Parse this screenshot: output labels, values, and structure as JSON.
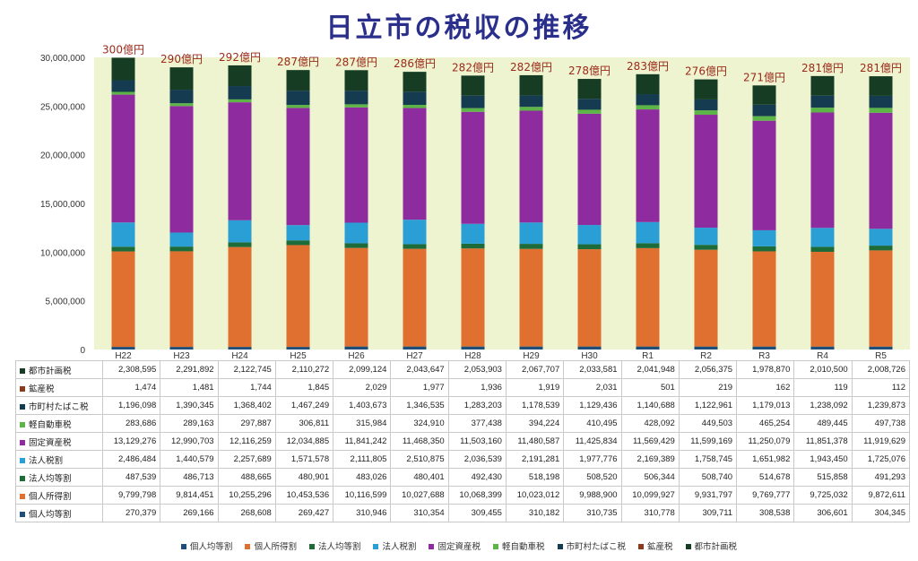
{
  "chart_data": {
    "type": "bar",
    "stacked": true,
    "title": "日立市の税収の推移",
    "categories": [
      "H22",
      "H23",
      "H24",
      "H25",
      "H26",
      "H27",
      "H28",
      "H29",
      "H30",
      "R1",
      "R2",
      "R3",
      "R4",
      "R5"
    ],
    "totals_label": [
      "300億円",
      "290億円",
      "292億円",
      "287億円",
      "287億円",
      "286億円",
      "282億円",
      "282億円",
      "278億円",
      "283億円",
      "276億円",
      "271億円",
      "281億円",
      "281億円"
    ],
    "ylim": [
      0,
      30000000
    ],
    "yticks": [
      "0",
      "5,000,000",
      "10,000,000",
      "15,000,000",
      "20,000,000",
      "25,000,000",
      "30,000,000"
    ],
    "grid": false,
    "legend_position": "bottom",
    "series": [
      {
        "name": "個人均等割",
        "color": "#1f4e79",
        "values": [
          270379,
          269166,
          268608,
          269427,
          310946,
          310354,
          309455,
          310182,
          310735,
          310778,
          309711,
          308538,
          306601,
          304345
        ],
        "labels": [
          "270,379",
          "269,166",
          "268,608",
          "269,427",
          "310,946",
          "310,354",
          "309,455",
          "310,182",
          "310,735",
          "310,778",
          "309,711",
          "308,538",
          "306,601",
          "304,345"
        ]
      },
      {
        "name": "個人所得割",
        "color": "#e07030",
        "values": [
          9799798,
          9814451,
          10255296,
          10453536,
          10116599,
          10027688,
          10068399,
          10023012,
          9988900,
          10099927,
          9931797,
          9769777,
          9725032,
          9872611
        ],
        "labels": [
          "9,799,798",
          "9,814,451",
          "10,255,296",
          "10,453,536",
          "10,116,599",
          "10,027,688",
          "10,068,399",
          "10,023,012",
          "9,988,900",
          "10,099,927",
          "9,931,797",
          "9,769,777",
          "9,725,032",
          "9,872,611"
        ]
      },
      {
        "name": "法人均等割",
        "color": "#1e6b3a",
        "values": [
          487539,
          486713,
          488665,
          480901,
          483026,
          480401,
          492430,
          518198,
          508520,
          506344,
          508740,
          514678,
          515858,
          491293
        ],
        "labels": [
          "487,539",
          "486,713",
          "488,665",
          "480,901",
          "483,026",
          "480,401",
          "492,430",
          "518,198",
          "508,520",
          "506,344",
          "508,740",
          "514,678",
          "515,858",
          "491,293"
        ]
      },
      {
        "name": "法人税割",
        "color": "#2a9fd6",
        "values": [
          2486484,
          1440579,
          2257689,
          1571578,
          2111805,
          2510875,
          2036539,
          2191281,
          1977776,
          2169389,
          1758745,
          1651982,
          1943450,
          1725076
        ],
        "labels": [
          "2,486,484",
          "1,440,579",
          "2,257,689",
          "1,571,578",
          "2,111,805",
          "2,510,875",
          "2,036,539",
          "2,191,281",
          "1,977,776",
          "2,169,389",
          "1,758,745",
          "1,651,982",
          "1,943,450",
          "1,725,076"
        ]
      },
      {
        "name": "固定資産税",
        "color": "#8e2b9e",
        "values": [
          13129276,
          12990703,
          12116259,
          12034885,
          11841242,
          11468350,
          11503160,
          11480587,
          11425834,
          11569429,
          11599169,
          11250079,
          11851378,
          11919629
        ],
        "labels": [
          "13,129,276",
          "12,990,703",
          "12,116,259",
          "12,034,885",
          "11,841,242",
          "11,468,350",
          "11,503,160",
          "11,480,587",
          "11,425,834",
          "11,569,429",
          "11,599,169",
          "11,250,079",
          "11,851,378",
          "11,919,629"
        ]
      },
      {
        "name": "軽自動車税",
        "color": "#5db547",
        "values": [
          283686,
          289163,
          297887,
          306811,
          315984,
          324910,
          377438,
          394224,
          410495,
          428092,
          449503,
          465254,
          489445,
          497738
        ],
        "labels": [
          "283,686",
          "289,163",
          "297,887",
          "306,811",
          "315,984",
          "324,910",
          "377,438",
          "394,224",
          "410,495",
          "428,092",
          "449,503",
          "465,254",
          "489,445",
          "497,738"
        ]
      },
      {
        "name": "市町村たばこ税",
        "color": "#143b4f",
        "values": [
          1196098,
          1390345,
          1368402,
          1467249,
          1403673,
          1346535,
          1283203,
          1178539,
          1129436,
          1140688,
          1122961,
          1179013,
          1238092,
          1239873
        ],
        "labels": [
          "1,196,098",
          "1,390,345",
          "1,368,402",
          "1,467,249",
          "1,403,673",
          "1,346,535",
          "1,283,203",
          "1,178,539",
          "1,129,436",
          "1,140,688",
          "1,122,961",
          "1,179,013",
          "1,238,092",
          "1,239,873"
        ]
      },
      {
        "name": "鉱産税",
        "color": "#8a3a1c",
        "values": [
          1474,
          1481,
          1744,
          1845,
          2029,
          1977,
          1936,
          1919,
          2031,
          501,
          219,
          162,
          119,
          112
        ],
        "labels": [
          "1,474",
          "1,481",
          "1,744",
          "1,845",
          "2,029",
          "1,977",
          "1,936",
          "1,919",
          "2,031",
          "501",
          "219",
          "162",
          "119",
          "112"
        ]
      },
      {
        "name": "都市計画税",
        "color": "#163d24",
        "values": [
          2308595,
          2291892,
          2122745,
          2110272,
          2099124,
          2043647,
          2053903,
          2067707,
          2033581,
          2041948,
          2056375,
          1978870,
          2010500,
          2008726
        ],
        "labels": [
          "2,308,595",
          "2,291,892",
          "2,122,745",
          "2,110,272",
          "2,099,124",
          "2,043,647",
          "2,053,903",
          "2,067,707",
          "2,033,581",
          "2,041,948",
          "2,056,375",
          "1,978,870",
          "2,010,500",
          "2,008,726"
        ]
      }
    ]
  },
  "colors": {
    "plot_background": "#eef3d0",
    "total_label": "#9b2a1a",
    "title": "#2b2f8c"
  }
}
